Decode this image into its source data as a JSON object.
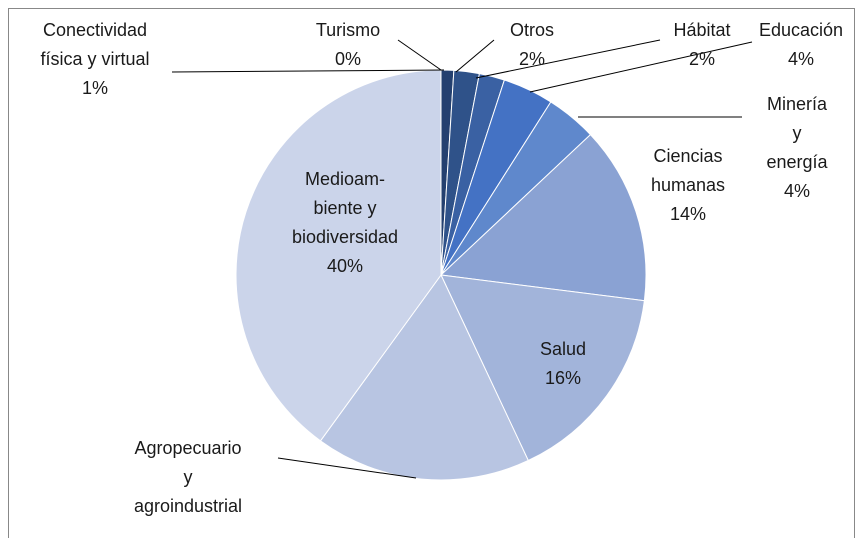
{
  "chart_data": {
    "type": "pie",
    "categories": [
      "Turismo",
      "Conectividad\nfísica y virtual",
      "Otros",
      "Hábitat",
      "Educación",
      "Minería y\nenergía",
      "Ciencias\nhumanas",
      "Salud",
      "Agropecuario\ny\nagroindustrial",
      "Medioam-\nbiente y\nbiodiversidad"
    ],
    "values": [
      0,
      1,
      2,
      2,
      4,
      4,
      14,
      16,
      17,
      40
    ],
    "value_labels": [
      "0%",
      "1%",
      "2%",
      "2%",
      "4%",
      "4%",
      "14%",
      "16%",
      null,
      "40%"
    ],
    "colors": [
      "#1b2f55",
      "#24406f",
      "#2f5289",
      "#3a61a3",
      "#4472c4",
      "#5f88cc",
      "#8aa2d3",
      "#a2b4da",
      "#b8c5e2",
      "#cbd4ea"
    ]
  }
}
